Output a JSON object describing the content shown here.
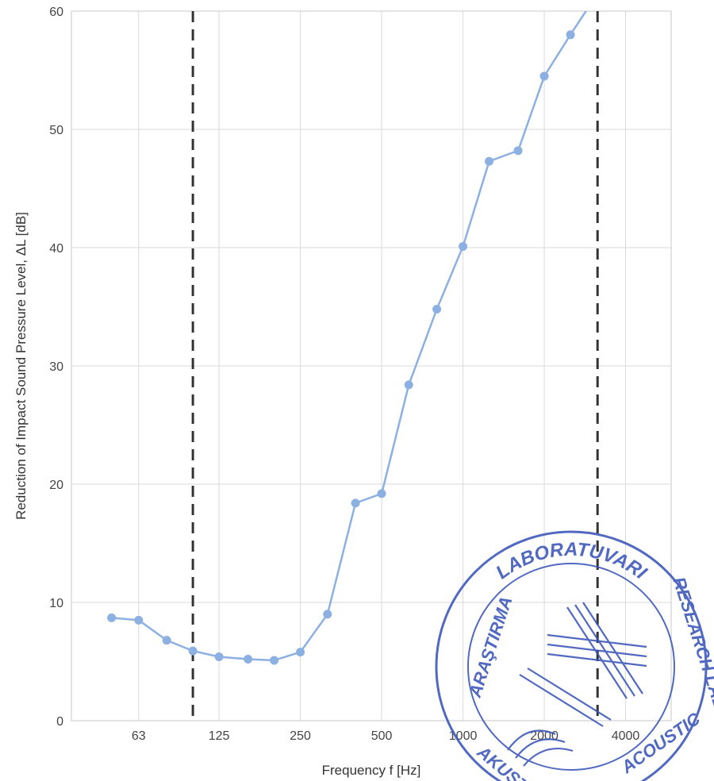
{
  "chart_data": {
    "type": "line",
    "xlabel": "Frequency f [Hz]",
    "ylabel": "Reduction of Impact Sound Pressure Level, ΔL [dB]",
    "x_scale": "log2",
    "x_ticks": [
      63,
      125,
      250,
      500,
      1000,
      2000,
      4000
    ],
    "x_tick_labels": [
      "63",
      "125",
      "250",
      "500",
      "1000",
      "2000",
      "4000"
    ],
    "y_ticks": [
      0,
      10,
      20,
      30,
      40,
      50,
      60
    ],
    "y_tick_labels": [
      "0",
      "10",
      "20",
      "30",
      "40",
      "50",
      "60"
    ],
    "xlim": [
      35.5,
      5900
    ],
    "ylim": [
      0,
      60
    ],
    "grid": true,
    "series": [
      {
        "color": "#8db0e2",
        "x": [
          50,
          63,
          80,
          100,
          125,
          160,
          200,
          250,
          315,
          400,
          500,
          630,
          800,
          1000,
          1250,
          1600,
          2000,
          2500,
          3150
        ],
        "y": [
          8.7,
          8.5,
          6.8,
          5.9,
          5.4,
          5.2,
          5.1,
          5.8,
          9.0,
          18.4,
          19.2,
          28.4,
          34.8,
          40.1,
          47.3,
          48.2,
          54.5,
          58.0,
          61.5
        ]
      }
    ],
    "limit_lines": [
      {
        "x": 100,
        "style": "dashed",
        "color": "#333333"
      },
      {
        "x": 3150,
        "style": "dashed",
        "color": "#333333"
      }
    ]
  },
  "stamp": {
    "top_text": "LABORATUVARI",
    "left_text": "ARAŞTIRMA",
    "right_text": "RESEARCH LAB",
    "bottom_left_text": "AKUSTİK",
    "bottom_right_text": "ACOUSTIC",
    "color": "#3a55b8"
  }
}
